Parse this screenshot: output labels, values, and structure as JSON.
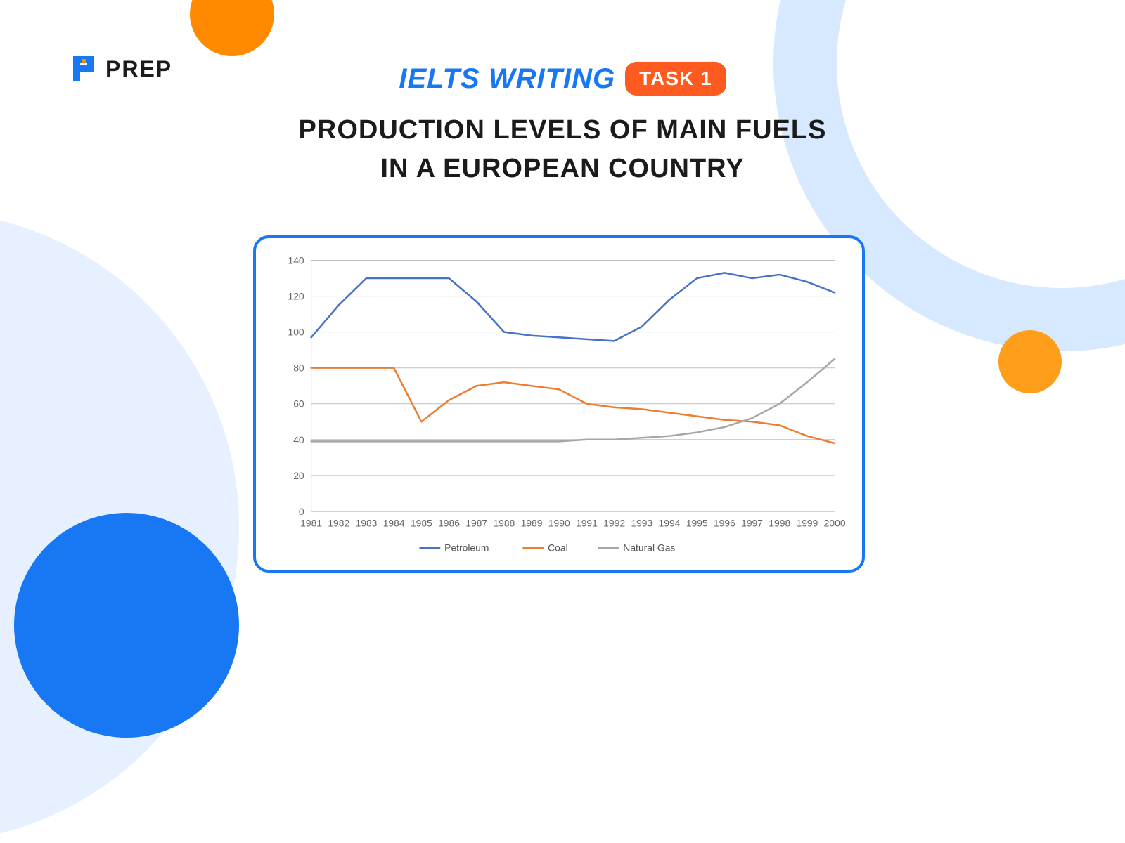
{
  "logo": {
    "text": "PREP",
    "icon_blue": "#1877f2",
    "icon_orange": "#ff8a00"
  },
  "decor": {
    "top_orange": "#ff8a00",
    "top_arc_blue": "#d6e9ff",
    "left_arc_blue": "#e6f0ff",
    "bottom_blue": "#1877f2",
    "right_orange": "#ff9e1a"
  },
  "heading": {
    "ielts": "IELTS WRITING",
    "badge": "TASK 1",
    "line1": "PRODUCTION LEVELS OF MAIN FUELS",
    "line2": "IN A EUROPEAN COUNTRY"
  },
  "chart": {
    "type": "line",
    "background_color": "#ffffff",
    "grid_color": "#bfbfbf",
    "axis_color": "#999999",
    "label_color": "#666666",
    "label_fontsize": 14,
    "ylim": [
      0,
      140
    ],
    "ytick_step": 20,
    "yticks": [
      0,
      20,
      40,
      60,
      80,
      100,
      120,
      140
    ],
    "categories": [
      "1981",
      "1982",
      "1983",
      "1984",
      "1985",
      "1986",
      "1987",
      "1988",
      "1989",
      "1990",
      "1991",
      "1992",
      "1993",
      "1994",
      "1995",
      "1996",
      "1997",
      "1998",
      "1999",
      "2000"
    ],
    "line_width": 2.5,
    "series": [
      {
        "name": "Petroleum",
        "color": "#4472c4",
        "values": [
          97,
          115,
          130,
          130,
          130,
          130,
          117,
          100,
          98,
          97,
          96,
          95,
          103,
          118,
          130,
          133,
          130,
          132,
          128,
          122
        ]
      },
      {
        "name": "Coal",
        "color": "#ed7d31",
        "values": [
          80,
          80,
          80,
          80,
          50,
          62,
          70,
          72,
          70,
          68,
          60,
          58,
          57,
          55,
          53,
          51,
          50,
          48,
          42,
          38
        ]
      },
      {
        "name": "Natural Gas",
        "color": "#a6a6a6",
        "values": [
          39,
          39,
          39,
          39,
          39,
          39,
          39,
          39,
          39,
          39,
          40,
          40,
          41,
          42,
          44,
          47,
          52,
          60,
          72,
          85
        ]
      }
    ],
    "legend_position": "bottom"
  }
}
